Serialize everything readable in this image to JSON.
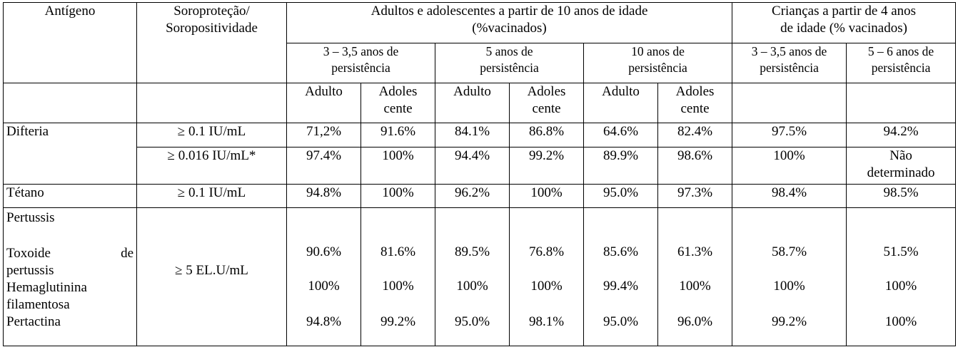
{
  "header": {
    "antigen": "Antígeno",
    "seroprotection": "Soroproteção/\nSoropositividade",
    "adults_group": "Adultos e adolescentes a partir de 10 anos de idade\n(%vacinados)",
    "children_group": "Crianças a partir de 4 anos\nde idade (% vacinados)",
    "persist_3_35": "3 – 3,5 anos de\npersistência",
    "persist_5": "5 anos de\npersistência",
    "persist_10": "10 anos de\npersistência",
    "child_persist_3_35": "3 – 3,5 anos de\npersistência",
    "child_persist_5_6": "5 – 6  anos de\npersistência",
    "adult": "Adulto",
    "adolescent": "Adoles\ncente"
  },
  "rows": [
    {
      "antigen": "Difteria",
      "threshold": "≥ 0.1 IU/mL",
      "values": [
        "71,2%",
        "91.6%",
        "84.1%",
        "86.8%",
        "64.6%",
        "82.4%",
        "97.5%",
        "94.2%"
      ]
    },
    {
      "antigen": "",
      "threshold": "≥ 0.016 IU/mL*",
      "values": [
        "97.4%",
        "100%",
        "94.4%",
        "99.2%",
        "89.9%",
        "98.6%",
        "100%",
        "Não\ndeterminado"
      ]
    },
    {
      "antigen": "Tétano",
      "threshold": "≥ 0.1 IU/mL",
      "values": [
        "94.8%",
        "100%",
        "96.2%",
        "100%",
        "95.0%",
        "97.3%",
        "98.4%",
        "98.5%"
      ]
    }
  ],
  "pertussis": {
    "label": "Pertussis",
    "threshold": "≥ 5 EL.U/mL",
    "toxoid_label_a": "Toxoide",
    "toxoid_label_b": "de",
    "toxoid_label_c": "pertussis",
    "toxoid": [
      "90.6%",
      "81.6%",
      "89.5%",
      "76.8%",
      "85.6%",
      "61.3%",
      "58.7%",
      "51.5%"
    ],
    "fha_label": "Hemaglutinina\nfilamentosa",
    "fha": [
      "100%",
      "100%",
      "100%",
      "100%",
      "99.4%",
      "100%",
      "100%",
      "100%"
    ],
    "prn_label": "Pertactina",
    "prn": [
      "94.8%",
      "99.2%",
      "95.0%",
      "98.1%",
      "95.0%",
      "96.0%",
      "99.2%",
      "100%"
    ]
  }
}
